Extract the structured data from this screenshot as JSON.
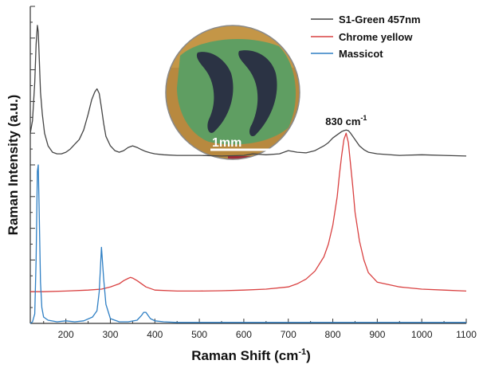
{
  "chart_data": {
    "type": "line",
    "xlabel_main": "Raman Shift (cm",
    "xlabel_sup": "-1",
    "xlabel_end": ")",
    "ylabel": "Raman Intensity (a.u.)",
    "xlim": [
      120,
      1100
    ],
    "ylim": [
      0,
      100
    ],
    "x_ticks": [
      200,
      300,
      400,
      500,
      600,
      700,
      800,
      900,
      1000,
      1100
    ],
    "grid": false,
    "legend_position": "top-right",
    "annotation": {
      "text_main": "830 cm",
      "text_sup": "-1",
      "x": 830,
      "y": 60
    },
    "inset": {
      "description_label": "1mm"
    },
    "series": [
      {
        "name": "S1-Green 457nm",
        "color": "#444444",
        "x": [
          120,
          125,
          130,
          133,
          136,
          138,
          140,
          143,
          147,
          152,
          160,
          170,
          180,
          190,
          200,
          210,
          220,
          230,
          240,
          250,
          258,
          265,
          270,
          275,
          280,
          285,
          290,
          300,
          310,
          320,
          330,
          340,
          350,
          360,
          370,
          380,
          390,
          400,
          420,
          450,
          500,
          550,
          600,
          620,
          650,
          680,
          700,
          720,
          740,
          760,
          780,
          790,
          800,
          810,
          820,
          825,
          830,
          835,
          840,
          850,
          860,
          870,
          880,
          900,
          950,
          1000,
          1050,
          1100
        ],
        "y": [
          60,
          64,
          76,
          88,
          94,
          92,
          84,
          73,
          66,
          60,
          56,
          54,
          53.5,
          53.5,
          54,
          55,
          56.5,
          58,
          61,
          66,
          70.5,
          73,
          74,
          72.5,
          68,
          63,
          59,
          56,
          54.5,
          54,
          54.5,
          55.5,
          56,
          55.5,
          54.8,
          54.2,
          53.8,
          53.5,
          53.2,
          53,
          53,
          52.8,
          53,
          53.5,
          53.2,
          53.5,
          54.5,
          54,
          53.8,
          54.5,
          56,
          57,
          58.5,
          59.5,
          60.5,
          60.8,
          61,
          60.8,
          60,
          58,
          56,
          54.8,
          54,
          53.5,
          53,
          53.2,
          53,
          52.8
        ]
      },
      {
        "name": "Chrome yellow",
        "color": "#d94040",
        "x": [
          120,
          150,
          200,
          250,
          280,
          300,
          320,
          330,
          340,
          345,
          350,
          360,
          380,
          400,
          450,
          500,
          550,
          600,
          650,
          700,
          720,
          740,
          760,
          780,
          790,
          800,
          810,
          815,
          820,
          825,
          830,
          835,
          840,
          845,
          850,
          860,
          870,
          880,
          900,
          950,
          1000,
          1050,
          1100
        ],
        "y": [
          10,
          10,
          10.2,
          10.5,
          10.8,
          11.5,
          12.5,
          13.5,
          14.2,
          14.5,
          14.3,
          13.5,
          11.5,
          10.5,
          10.2,
          10.2,
          10.3,
          10.5,
          10.8,
          11.5,
          12.5,
          14,
          16.5,
          21,
          25,
          31,
          40,
          47,
          53,
          58,
          60,
          57,
          50,
          43,
          35,
          26,
          20,
          16,
          13,
          11.5,
          10.8,
          10.5,
          10.2
        ]
      },
      {
        "name": "Massicot",
        "color": "#2e7fc4",
        "x": [
          120,
          125,
          130,
          133,
          136,
          138,
          140,
          143,
          146,
          150,
          160,
          180,
          200,
          220,
          240,
          260,
          270,
          275,
          280,
          285,
          290,
          300,
          320,
          340,
          360,
          370,
          375,
          380,
          385,
          390,
          400,
          420,
          450,
          500,
          600,
          700,
          800,
          900,
          1000,
          1100
        ],
        "y": [
          0,
          0.5,
          3,
          20,
          48,
          50,
          35,
          13,
          5,
          2,
          1,
          0.5,
          0.8,
          0.5,
          0.8,
          2,
          4,
          10,
          24,
          14,
          6,
          1.5,
          0.5,
          0.5,
          1,
          2.5,
          3.5,
          3.5,
          2.5,
          1.5,
          0.8,
          0.5,
          0.3,
          0.3,
          0.3,
          0.3,
          0.3,
          0.3,
          0.3,
          0.3
        ]
      }
    ]
  }
}
